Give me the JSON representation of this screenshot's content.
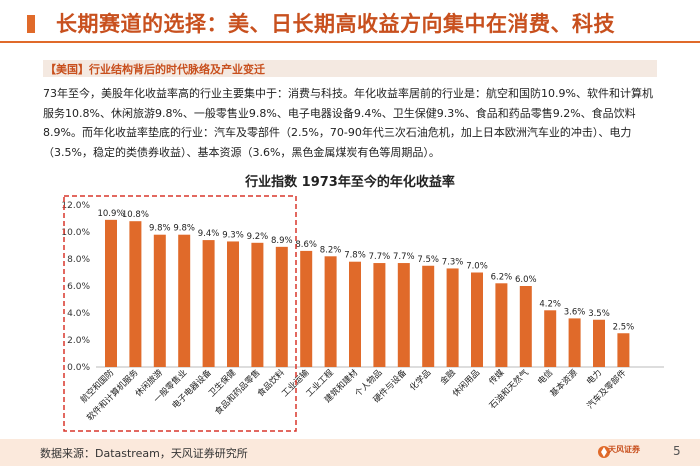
{
  "header": {
    "title": "长期赛道的选择：美、日长期高收益方向集中在消费、科技",
    "subtitle": "【美国】行业结构背后的时代脉络及产业变迁"
  },
  "body": {
    "paragraph": "73年至今，美股年化收益率高的行业主要集中于：消费与科技。年化收益率居前的行业是：航空和国防10.9%、软件和计算机服务10.8%、休闲旅游9.8%、一般零售业9.8%、电子电器设备9.4%、卫生保健9.3%、食品和药品零售9.2%、食品饮料8.9%。而年化收益率垫底的行业：汽车及零部件（2.5%，70-90年代三次石油危机，加上日本欧洲汽车业的冲击）、电力（3.5%，稳定的类债券收益）、基本资源（3.6%，黑色金属煤炭有色等周期品）。"
  },
  "chart_data": {
    "type": "bar",
    "title": "行业指数 1973年至今的年化收益率",
    "categories": [
      "航空和国防",
      "软件和计算机服务",
      "休闲旅游",
      "一般零售业",
      "电子电器设备",
      "卫生保健",
      "食品和药品零售",
      "食品饮料",
      "工业运输",
      "工业工程",
      "建筑和建材",
      "个人物品",
      "硬件与设备",
      "化学品",
      "金融",
      "休闲用品",
      "传媒",
      "石油和天然气",
      "电信",
      "基本资源",
      "电力",
      "汽车及零部件"
    ],
    "values": [
      10.9,
      10.8,
      9.8,
      9.8,
      9.4,
      9.3,
      9.2,
      8.9,
      8.6,
      8.2,
      7.8,
      7.7,
      7.7,
      7.5,
      7.3,
      7.0,
      6.2,
      6.0,
      4.2,
      3.6,
      3.5,
      2.5
    ],
    "value_labels": [
      "10.9%",
      "10.8%",
      "9.8%",
      "9.8%",
      "9.4%",
      "9.3%",
      "9.2%",
      "8.9%",
      "8.6%",
      "8.2%",
      "7.8%",
      "7.7%",
      "7.7%",
      "7.5%",
      "7.3%",
      "7.0%",
      "6.2%",
      "6.0%",
      "4.2%",
      "3.6%",
      "3.5%",
      "2.5%"
    ],
    "yticks": [
      "0.0%",
      "2.0%",
      "4.0%",
      "6.0%",
      "8.0%",
      "10.0%",
      "12.0%"
    ],
    "ylim": [
      0,
      12
    ],
    "highlight_count": 8,
    "bar_color": "#e06a2a",
    "highlight_box_color": "#d9362b",
    "grid": false,
    "legend": "none"
  },
  "footer": {
    "source": "数据来源：Datastream，天风证券研究所",
    "brand": "天风证券",
    "page": "5"
  },
  "colors": {
    "accent": "#e06a2a",
    "title": "#c8501e"
  }
}
